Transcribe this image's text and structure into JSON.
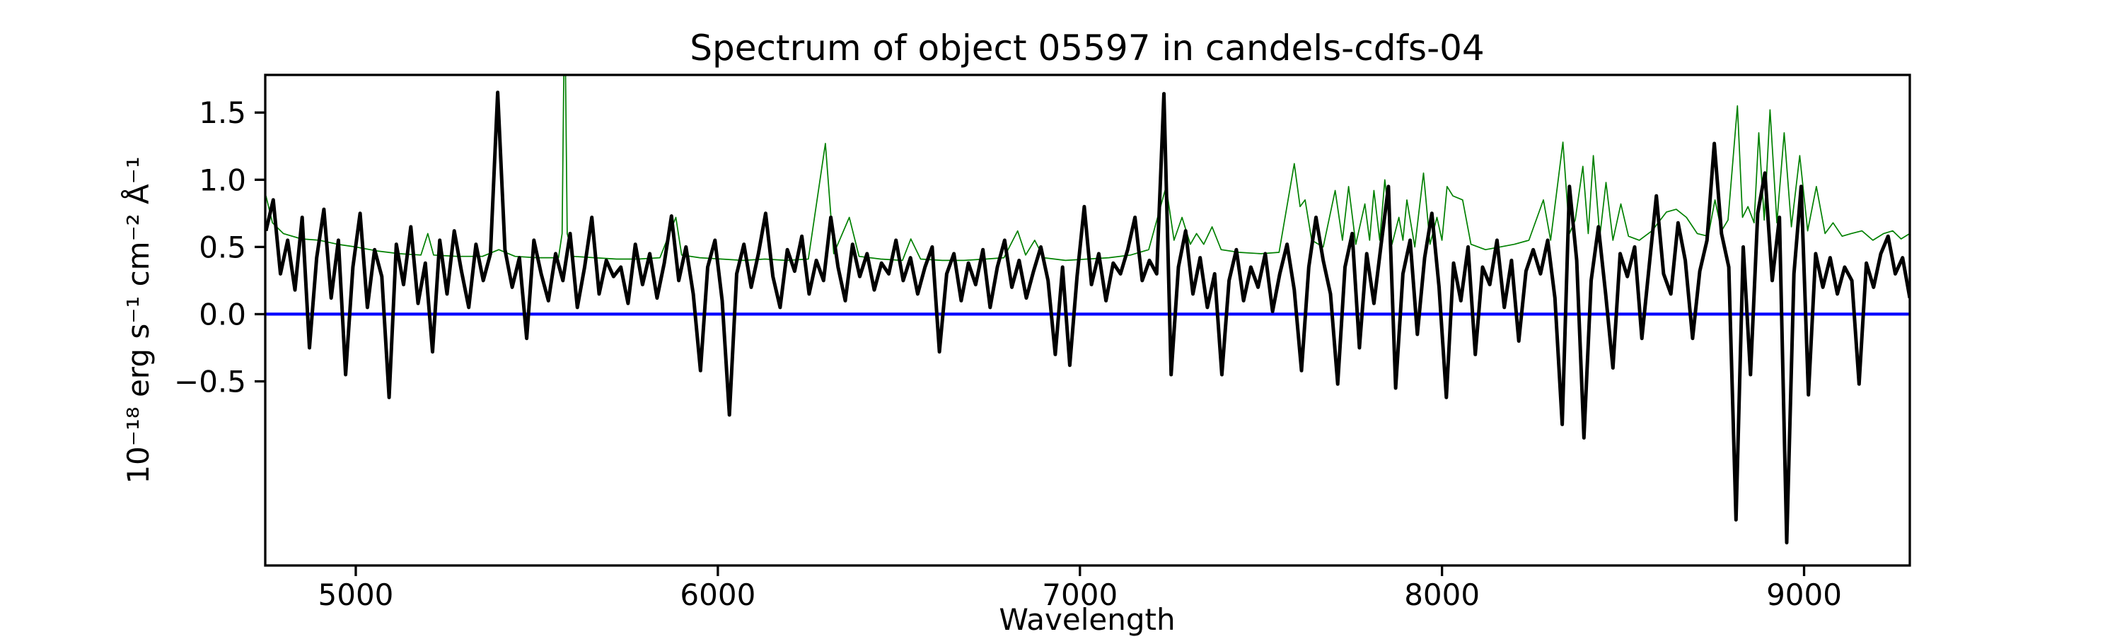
{
  "figure": {
    "background": "#ffffff"
  },
  "chart_data": {
    "type": "line",
    "title": "Spectrum of object 05597 in candels-cdfs-04",
    "xlabel": "Wavelength",
    "ylabel": "10⁻¹⁸ erg s⁻¹ cm⁻² Å⁻¹",
    "xlim": [
      4750,
      9292
    ],
    "ylim": [
      -1.87,
      1.78
    ],
    "grid": false,
    "legend": null,
    "xticks": [
      5000,
      6000,
      7000,
      8000,
      9000
    ],
    "yticks": [
      {
        "value": -0.5,
        "label": "−0.5"
      },
      {
        "value": 0.0,
        "label": "0.0"
      },
      {
        "value": 0.5,
        "label": "0.5"
      },
      {
        "value": 1.0,
        "label": "1.0"
      },
      {
        "value": 1.5,
        "label": "1.5"
      }
    ],
    "series": [
      {
        "name": "zero-line",
        "color": "#0000ff",
        "linewidth": 4.2,
        "points": [
          [
            4750,
            0.0
          ],
          [
            9292,
            0.0
          ]
        ]
      },
      {
        "name": "noise-spectrum",
        "color": "#008000",
        "linewidth": 1.7,
        "points": [
          [
            4752,
            0.88
          ],
          [
            4770,
            0.68
          ],
          [
            4800,
            0.6
          ],
          [
            4850,
            0.56
          ],
          [
            4900,
            0.55
          ],
          [
            4950,
            0.52
          ],
          [
            5000,
            0.5
          ],
          [
            5060,
            0.47
          ],
          [
            5120,
            0.45
          ],
          [
            5180,
            0.44
          ],
          [
            5199,
            0.6
          ],
          [
            5215,
            0.44
          ],
          [
            5280,
            0.43
          ],
          [
            5350,
            0.43
          ],
          [
            5395,
            0.48
          ],
          [
            5440,
            0.43
          ],
          [
            5500,
            0.42
          ],
          [
            5560,
            0.42
          ],
          [
            5570,
            0.6
          ],
          [
            5577,
            2.4
          ],
          [
            5584,
            0.6
          ],
          [
            5600,
            0.43
          ],
          [
            5660,
            0.42
          ],
          [
            5720,
            0.41
          ],
          [
            5780,
            0.41
          ],
          [
            5840,
            0.42
          ],
          [
            5884,
            0.72
          ],
          [
            5900,
            0.44
          ],
          [
            5950,
            0.42
          ],
          [
            6010,
            0.41
          ],
          [
            6070,
            0.4
          ],
          [
            6130,
            0.41
          ],
          [
            6190,
            0.4
          ],
          [
            6250,
            0.41
          ],
          [
            6297,
            1.27
          ],
          [
            6320,
            0.45
          ],
          [
            6363,
            0.72
          ],
          [
            6390,
            0.43
          ],
          [
            6450,
            0.41
          ],
          [
            6510,
            0.4
          ],
          [
            6533,
            0.56
          ],
          [
            6560,
            0.41
          ],
          [
            6620,
            0.4
          ],
          [
            6680,
            0.4
          ],
          [
            6740,
            0.41
          ],
          [
            6790,
            0.42
          ],
          [
            6828,
            0.62
          ],
          [
            6850,
            0.44
          ],
          [
            6875,
            0.55
          ],
          [
            6900,
            0.42
          ],
          [
            6960,
            0.4
          ],
          [
            7020,
            0.41
          ],
          [
            7080,
            0.42
          ],
          [
            7140,
            0.44
          ],
          [
            7190,
            0.48
          ],
          [
            7238,
            0.95
          ],
          [
            7260,
            0.55
          ],
          [
            7282,
            0.72
          ],
          [
            7305,
            0.52
          ],
          [
            7322,
            0.6
          ],
          [
            7342,
            0.52
          ],
          [
            7365,
            0.65
          ],
          [
            7390,
            0.48
          ],
          [
            7440,
            0.46
          ],
          [
            7500,
            0.45
          ],
          [
            7550,
            0.46
          ],
          [
            7592,
            1.12
          ],
          [
            7608,
            0.8
          ],
          [
            7622,
            0.85
          ],
          [
            7640,
            0.55
          ],
          [
            7672,
            0.5
          ],
          [
            7705,
            0.92
          ],
          [
            7725,
            0.55
          ],
          [
            7742,
            0.95
          ],
          [
            7762,
            0.52
          ],
          [
            7787,
            0.82
          ],
          [
            7800,
            0.55
          ],
          [
            7812,
            0.92
          ],
          [
            7828,
            0.55
          ],
          [
            7842,
            1.0
          ],
          [
            7862,
            0.52
          ],
          [
            7881,
            0.72
          ],
          [
            7892,
            0.55
          ],
          [
            7903,
            0.85
          ],
          [
            7925,
            0.5
          ],
          [
            7949,
            1.05
          ],
          [
            7967,
            0.52
          ],
          [
            7986,
            0.72
          ],
          [
            8000,
            0.55
          ],
          [
            8014,
            0.95
          ],
          [
            8030,
            0.88
          ],
          [
            8057,
            0.85
          ],
          [
            8080,
            0.52
          ],
          [
            8120,
            0.48
          ],
          [
            8160,
            0.5
          ],
          [
            8200,
            0.52
          ],
          [
            8240,
            0.55
          ],
          [
            8280,
            0.85
          ],
          [
            8300,
            0.55
          ],
          [
            8334,
            1.28
          ],
          [
            8352,
            0.6
          ],
          [
            8368,
            0.7
          ],
          [
            8389,
            1.1
          ],
          [
            8404,
            0.6
          ],
          [
            8418,
            1.18
          ],
          [
            8436,
            0.58
          ],
          [
            8453,
            0.98
          ],
          [
            8472,
            0.55
          ],
          [
            8494,
            0.82
          ],
          [
            8515,
            0.58
          ],
          [
            8545,
            0.55
          ],
          [
            8580,
            0.62
          ],
          [
            8620,
            0.76
          ],
          [
            8647,
            0.78
          ],
          [
            8675,
            0.72
          ],
          [
            8705,
            0.6
          ],
          [
            8735,
            0.58
          ],
          [
            8754,
            0.85
          ],
          [
            8772,
            0.62
          ],
          [
            8790,
            0.7
          ],
          [
            8816,
            1.55
          ],
          [
            8830,
            0.72
          ],
          [
            8845,
            0.8
          ],
          [
            8862,
            0.68
          ],
          [
            8875,
            1.35
          ],
          [
            8890,
            0.7
          ],
          [
            8906,
            1.52
          ],
          [
            8925,
            0.68
          ],
          [
            8945,
            1.35
          ],
          [
            8965,
            0.65
          ],
          [
            8988,
            1.18
          ],
          [
            9010,
            0.62
          ],
          [
            9034,
            0.95
          ],
          [
            9058,
            0.6
          ],
          [
            9080,
            0.68
          ],
          [
            9105,
            0.58
          ],
          [
            9130,
            0.6
          ],
          [
            9160,
            0.62
          ],
          [
            9190,
            0.55
          ],
          [
            9220,
            0.6
          ],
          [
            9245,
            0.62
          ],
          [
            9268,
            0.56
          ],
          [
            9292,
            0.6
          ]
        ]
      },
      {
        "name": "flux-spectrum",
        "color": "#000000",
        "linewidth": 5,
        "x0": 4752,
        "dx": 20,
        "y": [
          0.62,
          0.85,
          0.3,
          0.55,
          0.18,
          0.72,
          -0.25,
          0.42,
          0.78,
          0.12,
          0.55,
          -0.45,
          0.35,
          0.75,
          0.05,
          0.48,
          0.28,
          -0.62,
          0.52,
          0.22,
          0.65,
          0.08,
          0.38,
          -0.28,
          0.55,
          0.15,
          0.62,
          0.32,
          0.05,
          0.52,
          0.25,
          0.45,
          1.65,
          0.48,
          0.2,
          0.42,
          -0.18,
          0.55,
          0.3,
          0.1,
          0.45,
          0.25,
          0.6,
          0.05,
          0.35,
          0.72,
          0.15,
          0.4,
          0.28,
          0.35,
          0.08,
          0.52,
          0.22,
          0.45,
          0.12,
          0.38,
          0.73,
          0.25,
          0.5,
          0.15,
          -0.42,
          0.35,
          0.55,
          0.1,
          -0.75,
          0.3,
          0.52,
          0.2,
          0.45,
          0.75,
          0.28,
          0.05,
          0.48,
          0.32,
          0.58,
          0.15,
          0.4,
          0.25,
          0.72,
          0.35,
          0.1,
          0.52,
          0.28,
          0.45,
          0.18,
          0.38,
          0.3,
          0.55,
          0.25,
          0.42,
          0.15,
          0.35,
          0.5,
          -0.28,
          0.3,
          0.45,
          0.1,
          0.38,
          0.22,
          0.48,
          0.05,
          0.35,
          0.55,
          0.2,
          0.4,
          0.12,
          0.32,
          0.5,
          0.25,
          -0.3,
          0.35,
          -0.38,
          0.28,
          0.8,
          0.22,
          0.45,
          0.1,
          0.38,
          0.3,
          0.48,
          0.72,
          0.25,
          0.4,
          0.3,
          1.64,
          -0.45,
          0.35,
          0.62,
          0.15,
          0.42,
          0.05,
          0.3,
          -0.45,
          0.25,
          0.48,
          0.1,
          0.35,
          0.2,
          0.45,
          0.02,
          0.3,
          0.52,
          0.18,
          -0.42,
          0.35,
          0.72,
          0.4,
          0.15,
          -0.52,
          0.35,
          0.6,
          -0.25,
          0.45,
          0.08,
          0.52,
          0.95,
          -0.55,
          0.3,
          0.55,
          -0.15,
          0.42,
          0.75,
          0.2,
          -0.62,
          0.38,
          0.1,
          0.5,
          -0.3,
          0.35,
          0.22,
          0.55,
          0.05,
          0.4,
          -0.2,
          0.32,
          0.48,
          0.3,
          0.55,
          0.12,
          -0.82,
          0.95,
          0.4,
          -0.92,
          0.25,
          0.65,
          0.15,
          -0.4,
          0.45,
          0.28,
          0.5,
          -0.18,
          0.35,
          0.88,
          0.3,
          0.15,
          0.68,
          0.4,
          -0.18,
          0.32,
          0.55,
          1.27,
          0.6,
          0.35,
          -1.53,
          0.5,
          -0.45,
          0.75,
          1.05,
          0.25,
          0.72,
          -1.7,
          0.3,
          0.95,
          -0.6,
          0.45,
          0.2,
          0.42,
          0.15,
          0.35,
          0.25,
          -0.52,
          0.38,
          0.2,
          0.45,
          0.58,
          0.3,
          0.42,
          0.12
        ]
      }
    ]
  }
}
